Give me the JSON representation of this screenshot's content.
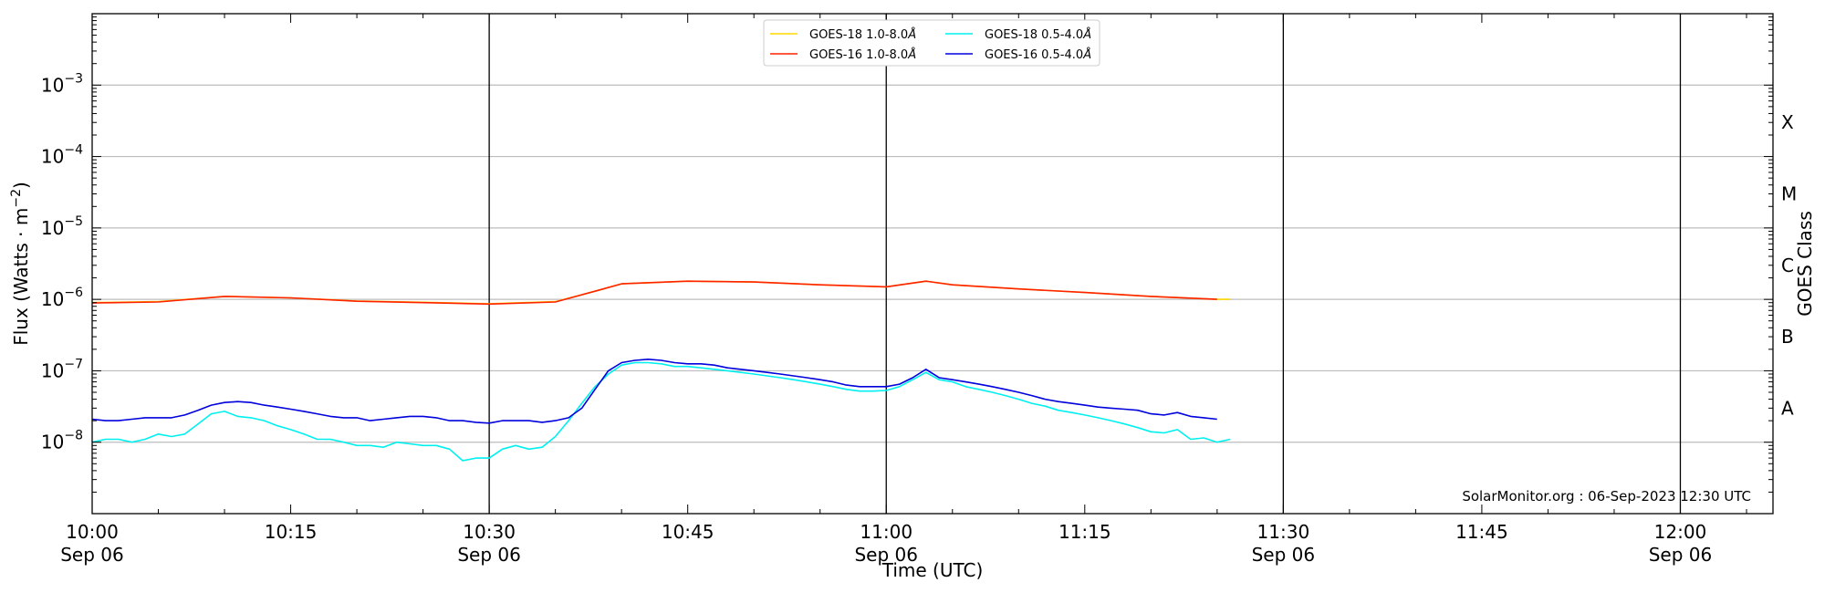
{
  "chart_data": {
    "type": "line",
    "xlabel": "Time (UTC)",
    "ylabel": "Flux (Watts · m",
    "ylabel_sup": "−2",
    "ylabel_close": ")",
    "right_label": "GOES Class",
    "credit": "SolarMonitor.org : 06-Sep-2023 12:30 UTC",
    "log_y": true,
    "grid": "horizontal",
    "legend_position": "top-center",
    "xlim": [
      "10:00",
      "12:07"
    ],
    "ylim_exponent": [
      -9,
      -2
    ],
    "y_ticks": [
      {
        "base": "10",
        "exp": "−3",
        "value": 0.001
      },
      {
        "base": "10",
        "exp": "−4",
        "value": 0.0001
      },
      {
        "base": "10",
        "exp": "−5",
        "value": 1e-05
      },
      {
        "base": "10",
        "exp": "−6",
        "value": 1e-06
      },
      {
        "base": "10",
        "exp": "−7",
        "value": 1e-07
      },
      {
        "base": "10",
        "exp": "−8",
        "value": 1e-08
      }
    ],
    "x_ticks": [
      {
        "time": "10:00",
        "date": "Sep 06"
      },
      {
        "time": "10:15",
        "date": ""
      },
      {
        "time": "10:30",
        "date": "Sep 06"
      },
      {
        "time": "10:45",
        "date": ""
      },
      {
        "time": "11:00",
        "date": "Sep 06"
      },
      {
        "time": "11:15",
        "date": ""
      },
      {
        "time": "11:30",
        "date": "Sep 06"
      },
      {
        "time": "11:45",
        "date": ""
      },
      {
        "time": "12:00",
        "date": "Sep 06"
      }
    ],
    "vertical_lines": [
      "10:30",
      "11:00",
      "11:30",
      "12:00"
    ],
    "goes_classes": [
      {
        "label": "X",
        "value": 0.0003
      },
      {
        "label": "M",
        "value": 3e-05
      },
      {
        "label": "C",
        "value": 3e-06
      },
      {
        "label": "B",
        "value": 3e-07
      },
      {
        "label": "A",
        "value": 3e-08
      }
    ],
    "series": [
      {
        "name": "GOES-18 1.0-8.0",
        "unit": "Å",
        "color": "#ffd700",
        "x": [
          "10:00",
          "10:05",
          "10:10",
          "10:15",
          "10:20",
          "10:25",
          "10:30",
          "10:35",
          "10:38",
          "10:40",
          "10:45",
          "10:50",
          "10:55",
          "11:00",
          "11:03",
          "11:05",
          "11:10",
          "11:15",
          "11:20",
          "11:25",
          "11:26"
        ],
        "values": [
          9e-07,
          9.3e-07,
          1.1e-06,
          1.05e-06,
          9.5e-07,
          9.1e-07,
          8.7e-07,
          9.3e-07,
          1.3e-06,
          1.65e-06,
          1.8e-06,
          1.75e-06,
          1.6e-06,
          1.5e-06,
          1.8e-06,
          1.6e-06,
          1.4e-06,
          1.25e-06,
          1.1e-06,
          1e-06,
          1e-06
        ]
      },
      {
        "name": "GOES-16 1.0-8.0",
        "unit": "Å",
        "color": "#ff2200",
        "x": [
          "10:00",
          "10:05",
          "10:10",
          "10:15",
          "10:20",
          "10:25",
          "10:30",
          "10:35",
          "10:38",
          "10:40",
          "10:45",
          "10:50",
          "10:55",
          "11:00",
          "11:03",
          "11:05",
          "11:10",
          "11:15",
          "11:20",
          "11:25"
        ],
        "values": [
          8.9e-07,
          9.2e-07,
          1.1e-06,
          1.05e-06,
          9.4e-07,
          9e-07,
          8.6e-07,
          9.2e-07,
          1.3e-06,
          1.65e-06,
          1.8e-06,
          1.75e-06,
          1.6e-06,
          1.5e-06,
          1.8e-06,
          1.6e-06,
          1.4e-06,
          1.25e-06,
          1.1e-06,
          1e-06
        ]
      },
      {
        "name": "GOES-18 0.5-4.0",
        "unit": "Å",
        "color": "#00f0f0",
        "x": [
          "10:00",
          "10:01",
          "10:02",
          "10:03",
          "10:04",
          "10:05",
          "10:06",
          "10:07",
          "10:08",
          "10:09",
          "10:10",
          "10:11",
          "10:12",
          "10:13",
          "10:14",
          "10:15",
          "10:16",
          "10:17",
          "10:18",
          "10:19",
          "10:20",
          "10:21",
          "10:22",
          "10:23",
          "10:24",
          "10:25",
          "10:26",
          "10:27",
          "10:28",
          "10:29",
          "10:30",
          "10:31",
          "10:32",
          "10:33",
          "10:34",
          "10:35",
          "10:36",
          "10:37",
          "10:38",
          "10:39",
          "10:40",
          "10:41",
          "10:42",
          "10:43",
          "10:44",
          "10:45",
          "10:46",
          "10:47",
          "10:48",
          "10:49",
          "10:50",
          "10:51",
          "10:52",
          "10:53",
          "10:54",
          "10:55",
          "10:56",
          "10:57",
          "10:58",
          "10:59",
          "11:00",
          "11:01",
          "11:02",
          "11:03",
          "11:04",
          "11:05",
          "11:06",
          "11:07",
          "11:08",
          "11:09",
          "11:10",
          "11:11",
          "11:12",
          "11:13",
          "11:14",
          "11:15",
          "11:16",
          "11:17",
          "11:18",
          "11:19",
          "11:20",
          "11:21",
          "11:22",
          "11:23",
          "11:24",
          "11:25",
          "11:26"
        ],
        "values": [
          1e-08,
          1.1e-08,
          1.1e-08,
          1e-08,
          1.1e-08,
          1.3e-08,
          1.2e-08,
          1.3e-08,
          1.8e-08,
          2.5e-08,
          2.7e-08,
          2.3e-08,
          2.2e-08,
          2e-08,
          1.7e-08,
          1.5e-08,
          1.3e-08,
          1.1e-08,
          1.1e-08,
          1e-08,
          9e-09,
          9e-09,
          8.5e-09,
          1e-08,
          9.5e-09,
          9e-09,
          9e-09,
          8e-09,
          5.5e-09,
          6e-09,
          6e-09,
          8e-09,
          9e-09,
          8e-09,
          8.5e-09,
          1.2e-08,
          2e-08,
          3.5e-08,
          6e-08,
          9e-08,
          1.2e-07,
          1.3e-07,
          1.3e-07,
          1.25e-07,
          1.15e-07,
          1.15e-07,
          1.1e-07,
          1.05e-07,
          1e-07,
          9.5e-08,
          9e-08,
          8.5e-08,
          8e-08,
          7.5e-08,
          7e-08,
          6.5e-08,
          6e-08,
          5.5e-08,
          5.2e-08,
          5.2e-08,
          5.3e-08,
          6e-08,
          7.5e-08,
          9.5e-08,
          7.5e-08,
          7e-08,
          6e-08,
          5.5e-08,
          5e-08,
          4.5e-08,
          4e-08,
          3.5e-08,
          3.2e-08,
          2.8e-08,
          2.6e-08,
          2.4e-08,
          2.2e-08,
          2e-08,
          1.8e-08,
          1.6e-08,
          1.4e-08,
          1.35e-08,
          1.5e-08,
          1.1e-08,
          1.15e-08,
          1e-08,
          1.1e-08
        ]
      },
      {
        "name": "GOES-16 0.5-4.0",
        "unit": "Å",
        "color": "#0000dd",
        "x": [
          "10:00",
          "10:01",
          "10:02",
          "10:03",
          "10:04",
          "10:05",
          "10:06",
          "10:07",
          "10:08",
          "10:09",
          "10:10",
          "10:11",
          "10:12",
          "10:13",
          "10:14",
          "10:15",
          "10:16",
          "10:17",
          "10:18",
          "10:19",
          "10:20",
          "10:21",
          "10:22",
          "10:23",
          "10:24",
          "10:25",
          "10:26",
          "10:27",
          "10:28",
          "10:29",
          "10:30",
          "10:31",
          "10:32",
          "10:33",
          "10:34",
          "10:35",
          "10:36",
          "10:37",
          "10:38",
          "10:39",
          "10:40",
          "10:41",
          "10:42",
          "10:43",
          "10:44",
          "10:45",
          "10:46",
          "10:47",
          "10:48",
          "10:49",
          "10:50",
          "10:51",
          "10:52",
          "10:53",
          "10:54",
          "10:55",
          "10:56",
          "10:57",
          "10:58",
          "10:59",
          "11:00",
          "11:01",
          "11:02",
          "11:03",
          "11:04",
          "11:05",
          "11:06",
          "11:07",
          "11:08",
          "11:09",
          "11:10",
          "11:11",
          "11:12",
          "11:13",
          "11:14",
          "11:15",
          "11:16",
          "11:17",
          "11:18",
          "11:19",
          "11:20",
          "11:21",
          "11:22",
          "11:23",
          "11:24",
          "11:25"
        ],
        "values": [
          2.1e-08,
          2e-08,
          2e-08,
          2.1e-08,
          2.2e-08,
          2.2e-08,
          2.2e-08,
          2.4e-08,
          2.8e-08,
          3.3e-08,
          3.6e-08,
          3.7e-08,
          3.6e-08,
          3.3e-08,
          3.1e-08,
          2.9e-08,
          2.7e-08,
          2.5e-08,
          2.3e-08,
          2.2e-08,
          2.2e-08,
          2e-08,
          2.1e-08,
          2.2e-08,
          2.3e-08,
          2.3e-08,
          2.2e-08,
          2e-08,
          2e-08,
          1.9e-08,
          1.85e-08,
          2e-08,
          2e-08,
          2e-08,
          1.9e-08,
          2e-08,
          2.2e-08,
          3e-08,
          5.5e-08,
          1e-07,
          1.3e-07,
          1.4e-07,
          1.45e-07,
          1.4e-07,
          1.3e-07,
          1.25e-07,
          1.25e-07,
          1.2e-07,
          1.1e-07,
          1.05e-07,
          1e-07,
          9.5e-08,
          9e-08,
          8.5e-08,
          8e-08,
          7.5e-08,
          7e-08,
          6.3e-08,
          6e-08,
          6e-08,
          6e-08,
          6.5e-08,
          8e-08,
          1.05e-07,
          8e-08,
          7.5e-08,
          7e-08,
          6.5e-08,
          6e-08,
          5.5e-08,
          5e-08,
          4.5e-08,
          4e-08,
          3.7e-08,
          3.5e-08,
          3.3e-08,
          3.1e-08,
          3e-08,
          2.9e-08,
          2.8e-08,
          2.5e-08,
          2.4e-08,
          2.6e-08,
          2.3e-08,
          2.2e-08,
          2.1e-08
        ]
      }
    ]
  }
}
